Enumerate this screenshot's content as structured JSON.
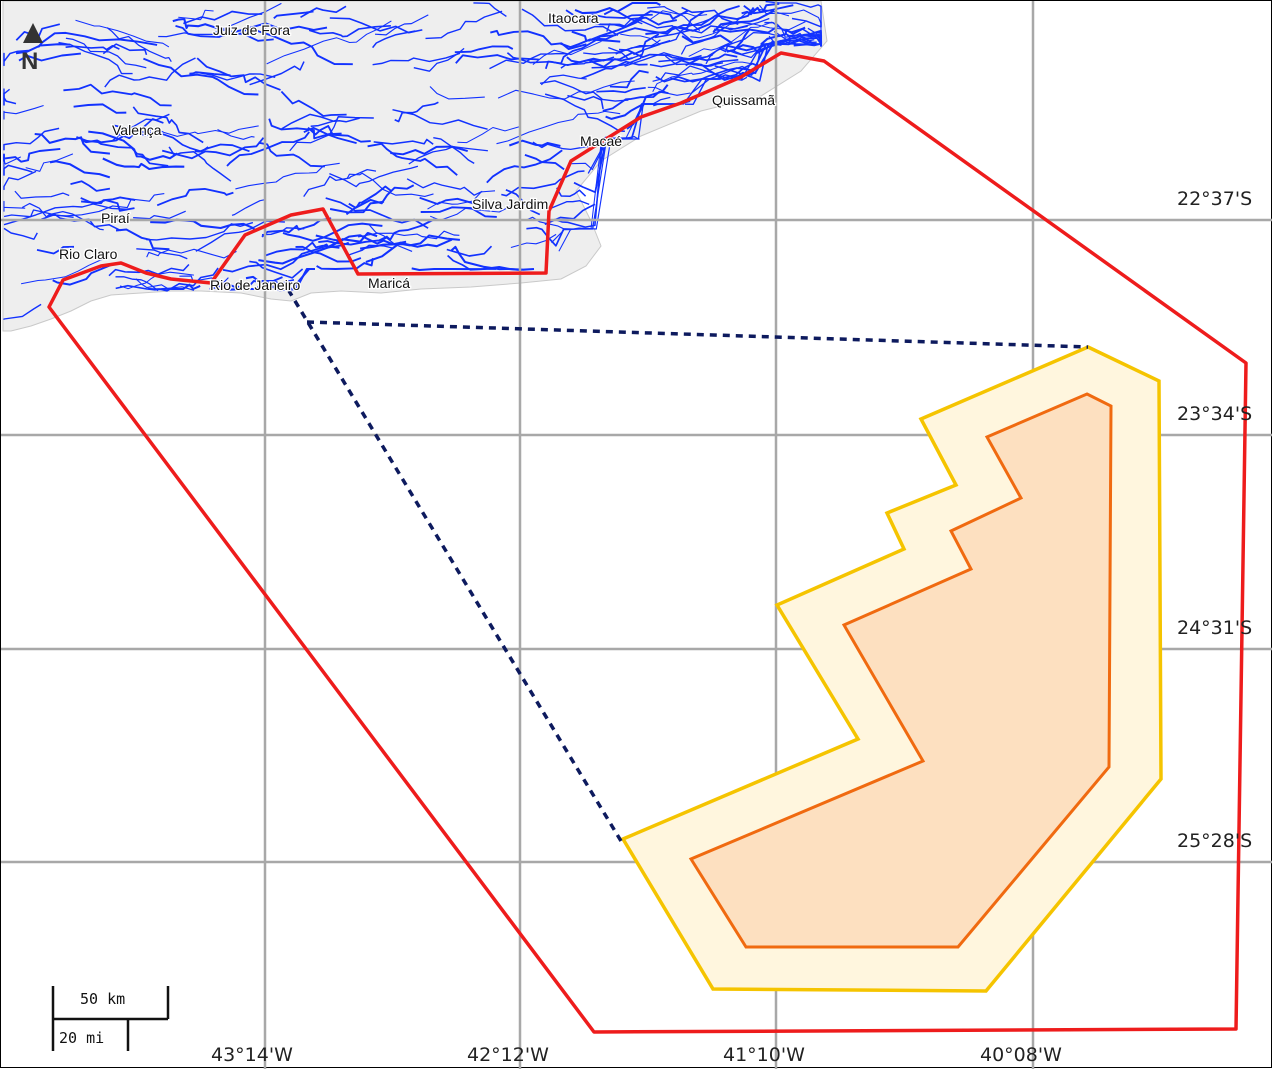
{
  "map": {
    "north_arrow_label": "N",
    "longitude_labels": [
      "43°14'W",
      "42°12'W",
      "41°10'W",
      "40°08'W"
    ],
    "latitude_labels": [
      "22°37'S",
      "23°34'S",
      "24°31'S",
      "25°28'S"
    ],
    "places": [
      {
        "id": "juiz-de-fora",
        "name": "Juiz de Fora"
      },
      {
        "id": "itaocara",
        "name": "Itaocara"
      },
      {
        "id": "quissama",
        "name": "Quissamã"
      },
      {
        "id": "macae",
        "name": "Macaé"
      },
      {
        "id": "valenca",
        "name": "Valença"
      },
      {
        "id": "silva-jardim",
        "name": "Silva Jardim"
      },
      {
        "id": "pirai",
        "name": "Piraí"
      },
      {
        "id": "rio-claro",
        "name": "Rio Claro"
      },
      {
        "id": "rio-de-janeiro",
        "name": "Rio de Janeiro"
      },
      {
        "id": "marica",
        "name": "Maricá"
      }
    ],
    "scale_bar": {
      "km_label": "50 km",
      "mi_label": "20 mi"
    },
    "colors": {
      "outer_boundary": "#ee1c1c",
      "yellow_zone_stroke": "#f5c400",
      "yellow_zone_fill": "#fff6de",
      "orange_zone_stroke": "#f06a10",
      "orange_zone_fill": "#fde0c0",
      "connector_line": "#0d1a5e",
      "rivers": "#1232ff",
      "land": "#eeeeee",
      "grid": "#a8a8a8"
    }
  }
}
